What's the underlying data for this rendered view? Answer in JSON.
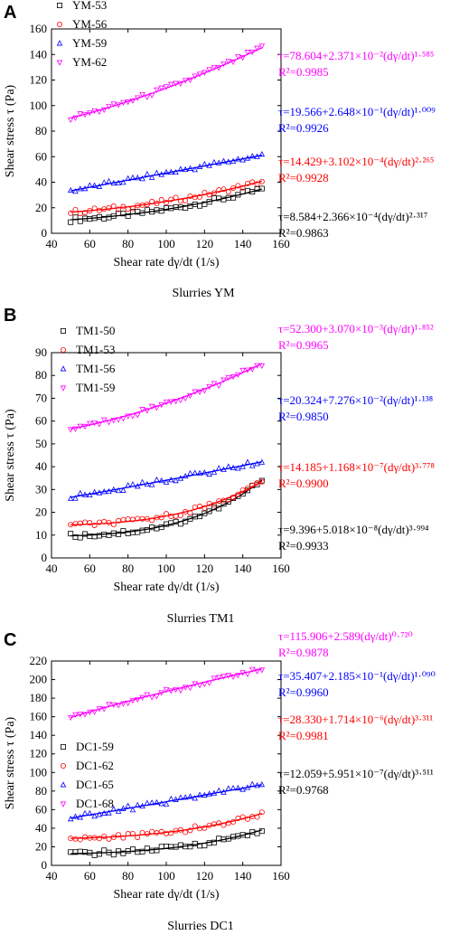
{
  "chart_data": [
    {
      "type": "scatter",
      "panel_label": "A",
      "caption": "Slurries YM",
      "xlabel": "Shear rate dγ/dt (1/s)",
      "ylabel": "Shear stress τ (Pa)",
      "xlim": [
        40,
        160
      ],
      "ylim": [
        0,
        160
      ],
      "xticks": [
        40,
        60,
        80,
        100,
        120,
        140,
        160
      ],
      "yticks": [
        0,
        20,
        40,
        60,
        80,
        100,
        120,
        140,
        160
      ],
      "legend_position": "top-left",
      "series": [
        {
          "name": "YM-53",
          "color": "#000000",
          "marker": "square",
          "a": 8.584,
          "b": 0.0002366,
          "n": 2.317,
          "equation": "τ=8.584+2.366×10⁻⁴(dγ/dt)²·³¹⁷",
          "r2": "R²=0.9863"
        },
        {
          "name": "YM-56",
          "color": "#ff0000",
          "marker": "circle",
          "a": 14.429,
          "b": 0.0003102,
          "n": 2.265,
          "equation": "τ=14.429+3.102×10⁻⁴(dγ/dt)²·²⁶⁵",
          "r2": "R²=0.9928"
        },
        {
          "name": "YM-59",
          "color": "#0000ff",
          "marker": "triangle-up",
          "a": 19.566,
          "b": 0.2648,
          "n": 1.009,
          "equation": "τ=19.566+2.648×10⁻¹(dγ/dt)¹·⁰⁰⁹",
          "r2": "R²=0.9926"
        },
        {
          "name": "YM-62",
          "color": "#ff00ff",
          "marker": "triangle-down",
          "a": 78.604,
          "b": 0.02371,
          "n": 1.585,
          "equation": "τ=78.604+2.371×10⁻²(dγ/dt)¹·⁵⁸⁵",
          "r2": "R²=0.9985"
        }
      ]
    },
    {
      "type": "scatter",
      "panel_label": "B",
      "caption": "Slurries TM1",
      "xlabel": "Shear rate dγ/dt (1/s)",
      "ylabel": "Shear stress τ (Pa)",
      "xlim": [
        40,
        160
      ],
      "ylim": [
        0,
        90
      ],
      "xticks": [
        40,
        60,
        80,
        100,
        120,
        140,
        160
      ],
      "yticks": [
        0,
        10,
        20,
        30,
        40,
        50,
        60,
        70,
        80,
        90
      ],
      "legend_position": "top-left",
      "series": [
        {
          "name": "TM1-50",
          "color": "#000000",
          "marker": "square",
          "a": 9.396,
          "b": 5.018e-08,
          "n": 3.994,
          "equation": "τ=9.396+5.018×10⁻⁸(dγ/dt)³·⁹⁹⁴",
          "r2": "R²=0.9933"
        },
        {
          "name": "TM1-53",
          "color": "#ff0000",
          "marker": "circle",
          "a": 14.185,
          "b": 1.168e-07,
          "n": 3.778,
          "equation": "τ=14.185+1.168×10⁻⁷(dγ/dt)³·⁷⁷⁸",
          "r2": "R²=0.9900"
        },
        {
          "name": "TM1-56",
          "color": "#0000ff",
          "marker": "triangle-up",
          "a": 20.324,
          "b": 0.07276,
          "n": 1.138,
          "equation": "τ=20.324+7.276×10⁻²(dγ/dt)¹·¹³⁸",
          "r2": "R²=0.9850"
        },
        {
          "name": "TM1-59",
          "color": "#ff00ff",
          "marker": "triangle-down",
          "a": 52.3,
          "b": 0.00307,
          "n": 1.852,
          "equation": "τ=52.300+3.070×10⁻³(dγ/dt)¹·⁸⁵²",
          "r2": "R²=0.9965"
        }
      ]
    },
    {
      "type": "scatter",
      "panel_label": "C",
      "caption": "Slurries DC1",
      "xlabel": "Shear rate dγ/dt (1/s)",
      "ylabel": "Shear stress τ (Pa)",
      "xlim": [
        40,
        160
      ],
      "ylim": [
        0,
        220
      ],
      "xticks": [
        40,
        60,
        80,
        100,
        120,
        140,
        160
      ],
      "yticks": [
        0,
        20,
        40,
        60,
        80,
        100,
        120,
        140,
        160,
        180,
        200,
        220
      ],
      "legend_position": "center-left",
      "series": [
        {
          "name": "DC1-59",
          "color": "#000000",
          "marker": "square",
          "a": 12.059,
          "b": 5.951e-07,
          "n": 3.511,
          "equation": "τ=12.059+5.951×10⁻⁷(dγ/dt)³·⁵¹¹",
          "r2": "R²=0.9768"
        },
        {
          "name": "DC1-62",
          "color": "#ff0000",
          "marker": "circle",
          "a": 28.33,
          "b": 1.714e-06,
          "n": 3.311,
          "equation": "τ=28.330+1.714×10⁻⁶(dγ/dt)³·³¹¹",
          "r2": "R²=0.9981"
        },
        {
          "name": "DC1-65",
          "color": "#0000ff",
          "marker": "triangle-up",
          "a": 35.407,
          "b": 0.2185,
          "n": 1.09,
          "equation": "τ=35.407+2.185×10⁻¹(dγ/dt)¹·⁰⁹⁰",
          "r2": "R²=0.9960"
        },
        {
          "name": "DC1-68",
          "color": "#ff00ff",
          "marker": "triangle-down",
          "a": 115.906,
          "b": 2.589,
          "n": 0.72,
          "equation": "τ=115.906+2.589(dγ/dt)⁰·⁷²⁰",
          "r2": "R²=0.9878"
        }
      ]
    }
  ]
}
